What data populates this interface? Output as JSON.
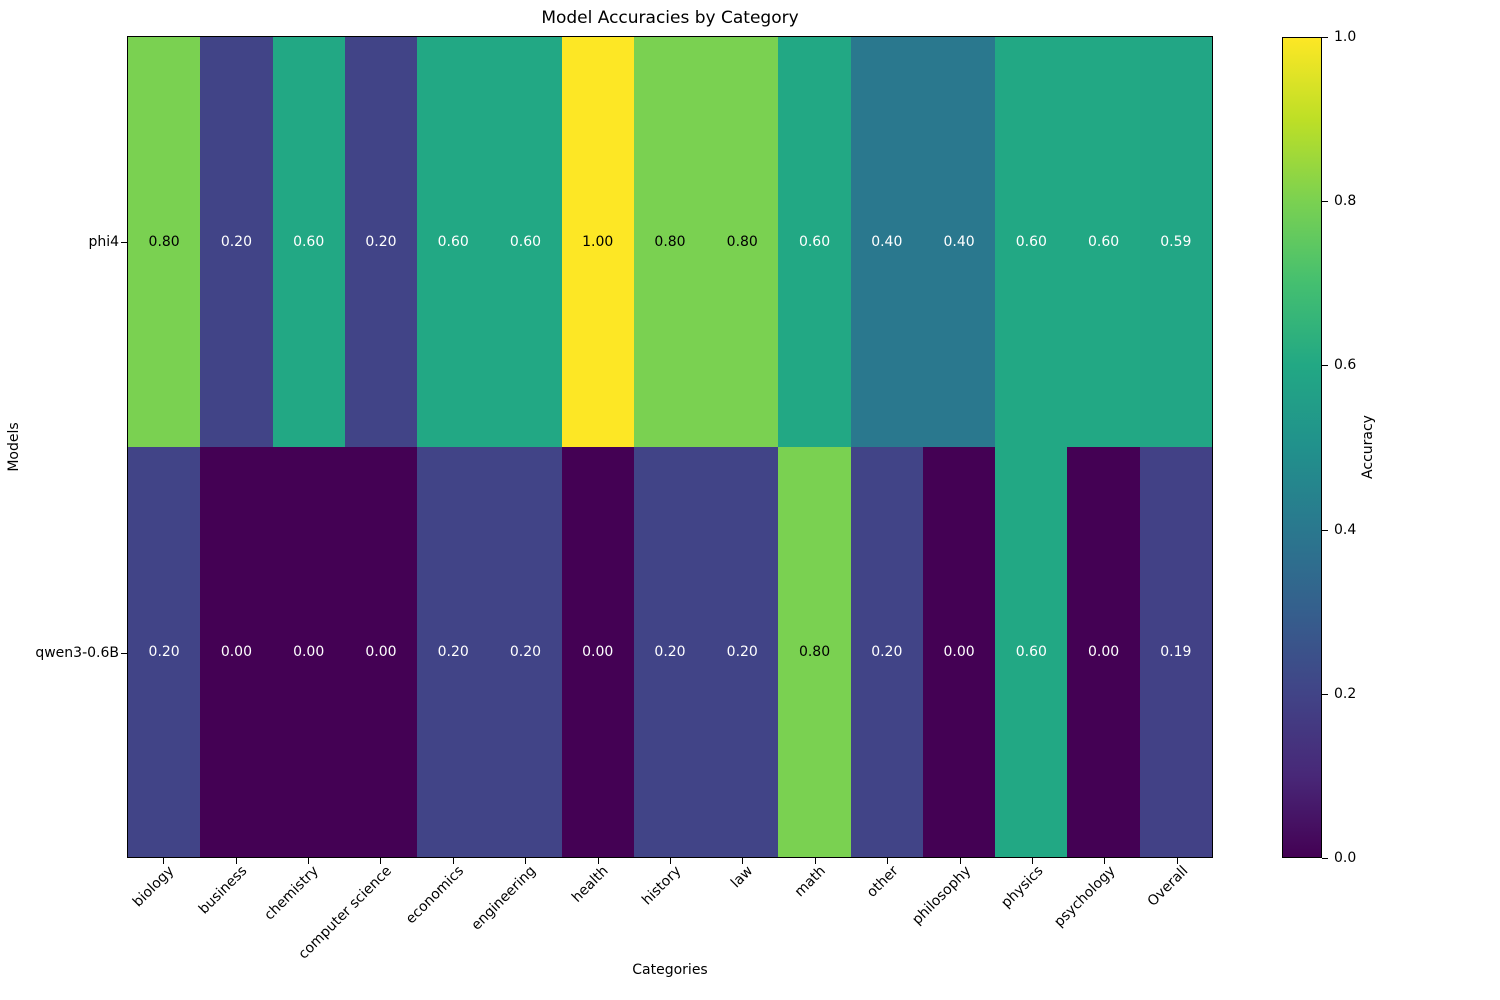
{
  "chart_data": {
    "type": "heatmap",
    "title": "Model Accuracies by Category",
    "xlabel": "Categories",
    "ylabel": "Models",
    "categories": [
      "biology",
      "business",
      "chemistry",
      "computer science",
      "economics",
      "engineering",
      "health",
      "history",
      "law",
      "math",
      "other",
      "philosophy",
      "physics",
      "psychology",
      "Overall"
    ],
    "models": [
      "phi4",
      "qwen3-0.6B"
    ],
    "series": [
      {
        "name": "phi4",
        "values": [
          0.8,
          0.2,
          0.6,
          0.2,
          0.6,
          0.6,
          1.0,
          0.8,
          0.8,
          0.6,
          0.4,
          0.4,
          0.6,
          0.6,
          0.59
        ]
      },
      {
        "name": "qwen3-0.6B",
        "values": [
          0.2,
          0.0,
          0.0,
          0.0,
          0.2,
          0.2,
          0.0,
          0.2,
          0.2,
          0.8,
          0.2,
          0.0,
          0.6,
          0.0,
          0.19
        ]
      }
    ],
    "value_decimals": 2,
    "colormap": "viridis",
    "vmin": 0.0,
    "vmax": 1.0,
    "grid": false,
    "legend_position": "right-colorbar",
    "colorbar_label": "Accuracy",
    "colorbar_ticks": [
      "1.0",
      "0.8",
      "0.6",
      "0.4",
      "0.2",
      "0.0"
    ]
  },
  "colors": {
    "background": "#ffffff",
    "axis": "#000000",
    "annotation_on_dark": "#ffffff",
    "annotation_on_light": "#000000",
    "viridis_anchors": [
      "#440154",
      "#482878",
      "#414487",
      "#355f8d",
      "#2a788e",
      "#21918c",
      "#22a884",
      "#44bf70",
      "#7ad151",
      "#bddf26",
      "#fde725"
    ]
  }
}
